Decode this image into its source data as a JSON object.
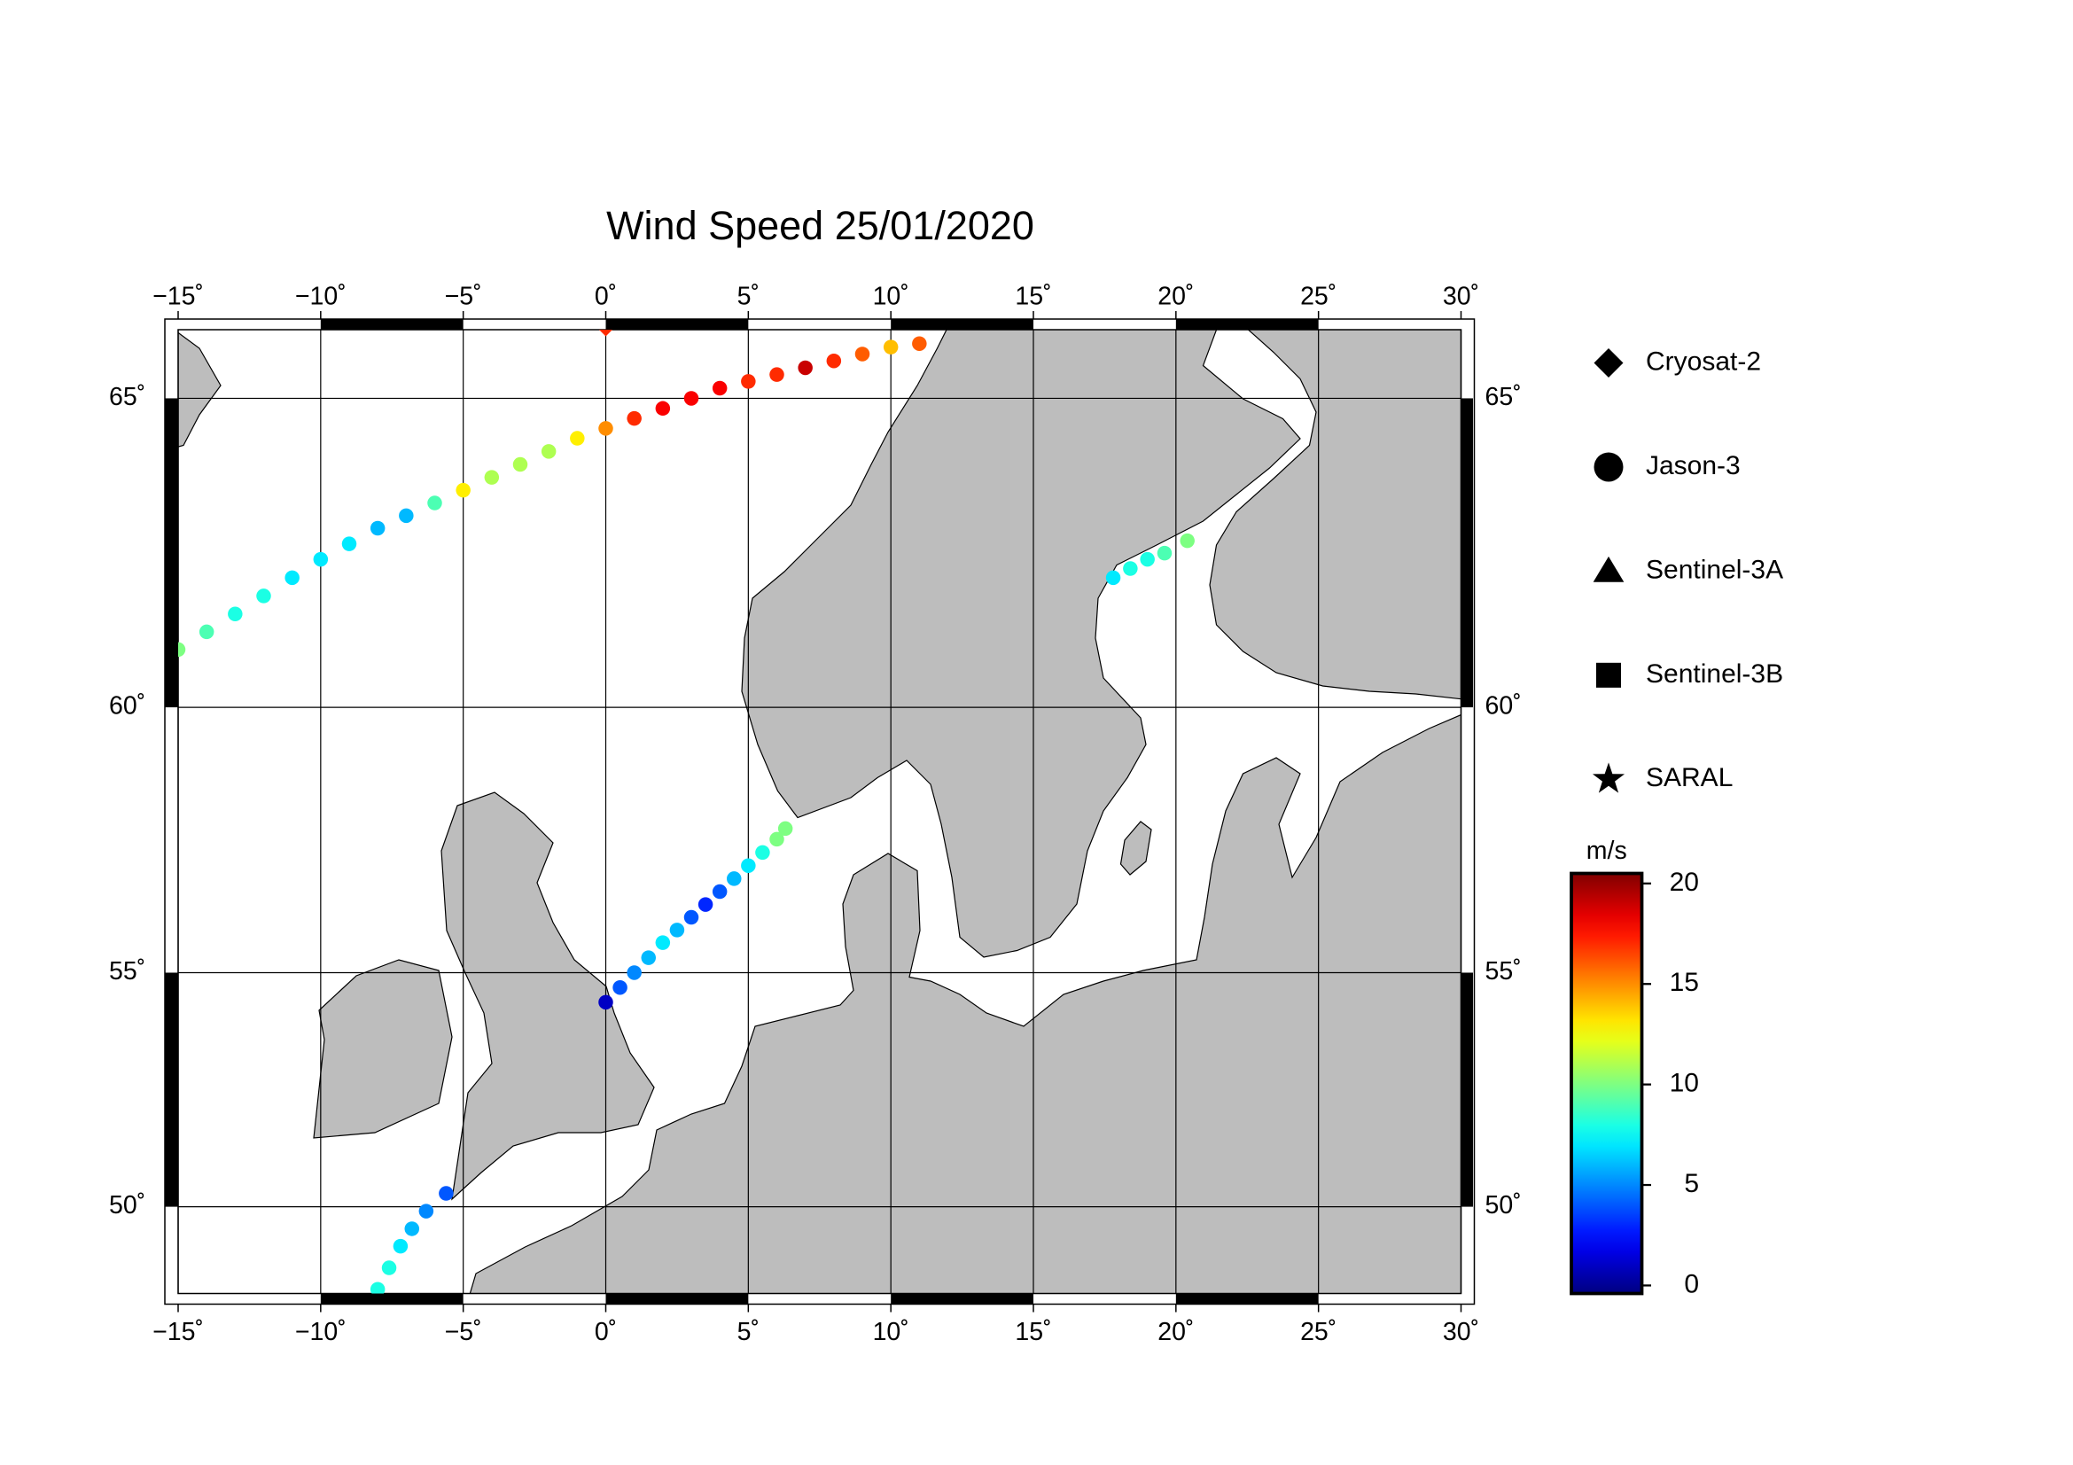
{
  "chart_data": {
    "type": "map",
    "title": "Wind Speed 25/01/2020",
    "projection": "mercator",
    "xlim": [
      -15,
      30
    ],
    "ylim": [
      48,
      66
    ],
    "xticks": [
      {
        "value": -15,
        "label": "−15˚"
      },
      {
        "value": -10,
        "label": "−10˚"
      },
      {
        "value": -5,
        "label": "−5˚"
      },
      {
        "value": 0,
        "label": "0˚"
      },
      {
        "value": 5,
        "label": "5˚"
      },
      {
        "value": 10,
        "label": "10˚"
      },
      {
        "value": 15,
        "label": "15˚"
      },
      {
        "value": 20,
        "label": "20˚"
      },
      {
        "value": 25,
        "label": "25˚"
      },
      {
        "value": 30,
        "label": "30˚"
      }
    ],
    "yticks": [
      {
        "value": 50,
        "label": "50˚"
      },
      {
        "value": 55,
        "label": "55˚"
      },
      {
        "value": 60,
        "label": "60˚"
      },
      {
        "value": 65,
        "label": "65˚"
      }
    ],
    "grid": true,
    "series": [
      {
        "name": "Cryosat-2",
        "marker": "diamond",
        "lon": [
          0
        ],
        "lat": [
          66
        ],
        "values": [
          17
        ]
      },
      {
        "name": "Jason-3",
        "marker": "circle",
        "lon": [
          -15,
          -14,
          -13,
          -12,
          -11,
          -10,
          -9,
          -8,
          -7,
          -6,
          -5,
          -4,
          -3,
          -2,
          -1,
          0,
          1,
          2,
          3,
          4,
          5,
          6,
          7,
          8,
          9,
          10,
          11,
          0,
          0.5,
          1,
          1.5,
          2,
          2.5,
          3,
          3.5,
          4,
          4.5,
          5,
          5.5,
          6,
          6.3,
          -8,
          -7.6,
          -7.2,
          -6.8,
          -6.3,
          -5.6,
          17.8,
          18.4,
          19,
          19.6,
          20.4
        ],
        "lat": [
          61.0,
          61.3,
          61.6,
          61.9,
          62.2,
          62.5,
          62.75,
          63.0,
          63.2,
          63.4,
          63.6,
          63.8,
          64.0,
          64.2,
          64.4,
          64.55,
          64.7,
          64.85,
          65.0,
          65.15,
          65.25,
          65.35,
          65.45,
          65.55,
          65.65,
          65.75,
          65.8,
          54.4,
          54.7,
          55.0,
          55.3,
          55.6,
          55.85,
          56.1,
          56.35,
          56.6,
          56.85,
          57.1,
          57.35,
          57.6,
          57.8,
          48.1,
          48.6,
          49.1,
          49.5,
          49.9,
          50.3,
          62.2,
          62.35,
          62.5,
          62.6,
          62.8
        ],
        "values": [
          10,
          9,
          8,
          8,
          7,
          7,
          7,
          6,
          6,
          9,
          13,
          11,
          11,
          11,
          13,
          15,
          17,
          18,
          18,
          18,
          17,
          17,
          19,
          17,
          16,
          14,
          16,
          1,
          4,
          5,
          6,
          7,
          6,
          4,
          3,
          4,
          6,
          7,
          8,
          10,
          10,
          8,
          8,
          7,
          6,
          5,
          4,
          7,
          8,
          8,
          9,
          10
        ]
      },
      {
        "name": "Sentinel-3A",
        "marker": "triangle",
        "lon": [],
        "lat": [],
        "values": []
      },
      {
        "name": "Sentinel-3B",
        "marker": "square",
        "lon": [],
        "lat": [],
        "values": []
      },
      {
        "name": "SARAL",
        "marker": "star",
        "lon": [],
        "lat": [],
        "values": []
      }
    ],
    "colorbar": {
      "label": "m/s",
      "colormap": "jet",
      "lim": [
        -0.4,
        20.5
      ],
      "ticks": [
        0,
        5,
        10,
        15,
        20
      ]
    }
  }
}
